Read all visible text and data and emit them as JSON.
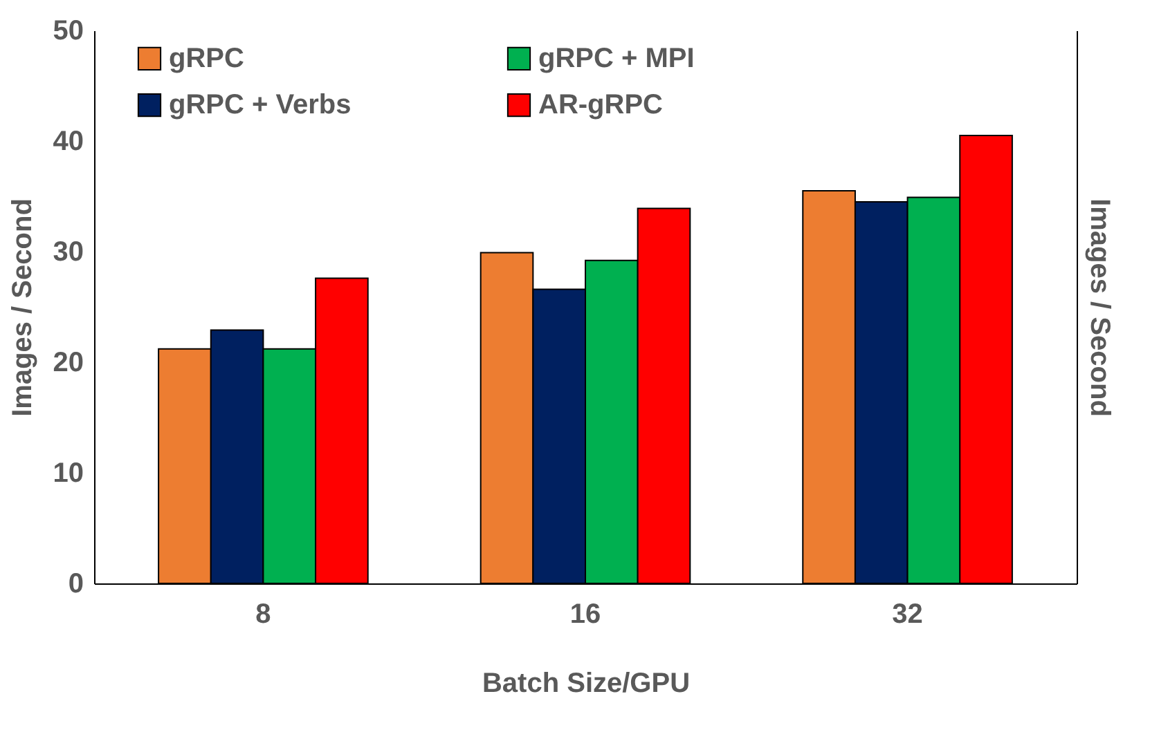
{
  "chart_data": {
    "type": "bar",
    "xlabel": "Batch Size/GPU",
    "ylabel": "Images / Second",
    "y2label": "Images / Second",
    "categories": [
      "8",
      "16",
      "32"
    ],
    "series": [
      {
        "name": "gRPC",
        "color": "#ed7d31",
        "values": [
          21.2,
          29.9,
          35.5
        ]
      },
      {
        "name": "gRPC + Verbs",
        "color": "#002060",
        "values": [
          22.9,
          26.6,
          34.5
        ]
      },
      {
        "name": "gRPC + MPI",
        "color": "#00b050",
        "values": [
          21.2,
          29.2,
          34.9
        ]
      },
      {
        "name": "AR-gRPC",
        "color": "#ff0000",
        "values": [
          27.6,
          33.9,
          40.5
        ]
      }
    ],
    "ylim": [
      0,
      50
    ],
    "yticks": [
      0,
      10,
      20,
      30,
      40,
      50
    ],
    "grid": false,
    "legend": "top"
  }
}
